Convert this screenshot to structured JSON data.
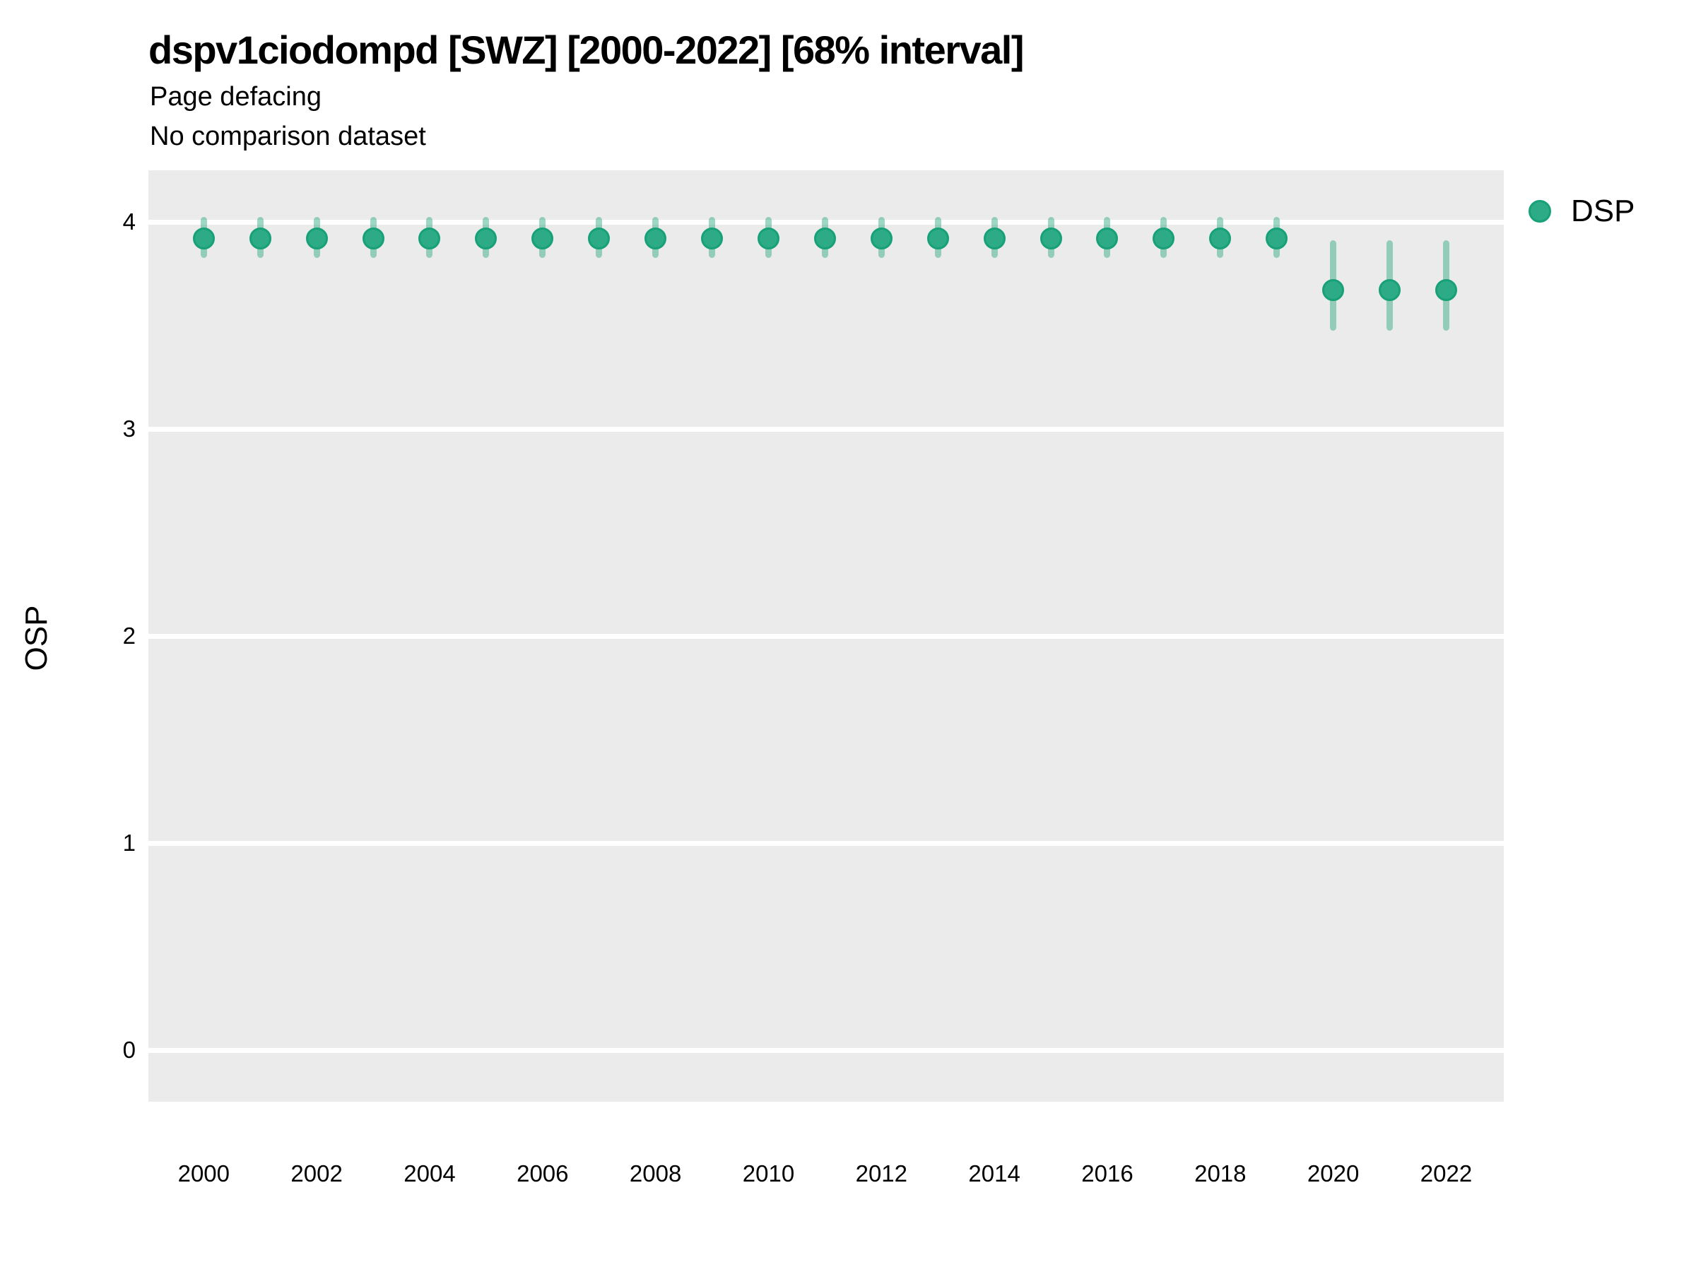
{
  "header": {
    "title": "dspv1ciodompd [SWZ] [2000-2022] [68% interval]",
    "subtitle": "Page defacing",
    "note": "No comparison dataset"
  },
  "legend": {
    "items": [
      {
        "label": "DSP",
        "color": "#2cab86"
      }
    ],
    "position": "right-top"
  },
  "colors": {
    "point_fill": "#2cab86",
    "point_stroke": "#18a078",
    "interval_bar": "rgba(39,166,124,0.45)",
    "panel_bg": "#EBEBEB",
    "gridline": "#FFFFFF",
    "text": "#000000"
  },
  "chart_data": {
    "type": "scatter",
    "title": "dspv1ciodompd [SWZ] [2000-2022] [68% interval]",
    "subtitle": "Page defacing",
    "annotation": "No comparison dataset",
    "xlabel": "",
    "ylabel": "OSP",
    "grid": "horizontal-major-only",
    "legend_position": "right-top",
    "xlim": [
      1999.02,
      2023.02
    ],
    "ylim": [
      -0.25,
      4.25
    ],
    "x_ticks": [
      2000,
      2002,
      2004,
      2006,
      2008,
      2010,
      2012,
      2014,
      2016,
      2018,
      2020,
      2022
    ],
    "y_ticks": [
      0,
      1,
      2,
      3,
      4
    ],
    "series": [
      {
        "name": "DSP",
        "x": [
          2000,
          2001,
          2002,
          2003,
          2004,
          2005,
          2006,
          2007,
          2008,
          2009,
          2010,
          2011,
          2012,
          2013,
          2014,
          2015,
          2016,
          2017,
          2018,
          2019,
          2020,
          2021,
          2022
        ],
        "y": [
          3.92,
          3.92,
          3.92,
          3.92,
          3.92,
          3.92,
          3.92,
          3.92,
          3.92,
          3.92,
          3.92,
          3.92,
          3.92,
          3.92,
          3.92,
          3.92,
          3.92,
          3.92,
          3.92,
          3.92,
          3.67,
          3.67,
          3.67
        ],
        "y_lo": [
          3.84,
          3.84,
          3.84,
          3.84,
          3.84,
          3.84,
          3.84,
          3.84,
          3.84,
          3.84,
          3.84,
          3.84,
          3.84,
          3.84,
          3.84,
          3.84,
          3.84,
          3.84,
          3.84,
          3.84,
          3.49,
          3.49,
          3.49
        ],
        "y_hi": [
          4.01,
          4.01,
          4.01,
          4.01,
          4.01,
          4.01,
          4.01,
          4.01,
          4.01,
          4.01,
          4.01,
          4.01,
          4.01,
          4.01,
          4.01,
          4.01,
          4.01,
          4.01,
          4.01,
          4.01,
          3.9,
          3.9,
          3.9
        ],
        "interval": "68%"
      }
    ]
  }
}
